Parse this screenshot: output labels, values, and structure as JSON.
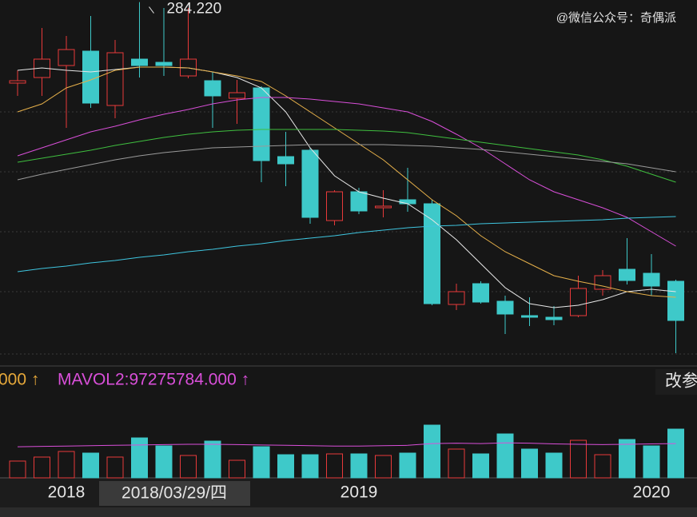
{
  "chart_data": {
    "type": "candlestick",
    "watermark": "@微信公众号：奇偶派",
    "annotations": [
      {
        "text": "284.220",
        "index": 5
      }
    ],
    "crosshair_label": "2018/03/29/四",
    "settings_button": "改参",
    "volume_legend": [
      "000 ↑",
      "MAVOL2:97275784.000 ↑"
    ],
    "categories": [
      null,
      null,
      "2018",
      null,
      null,
      null,
      null,
      null,
      null,
      null,
      null,
      null,
      null,
      null,
      "2019",
      null,
      null,
      null,
      null,
      null,
      null,
      null,
      null,
      null,
      null,
      null,
      "2020",
      null
    ],
    "open": [
      253.8,
      255.9,
      260.4,
      265.8,
      245.4,
      262.8,
      261.6,
      256.5,
      254.7,
      248.1,
      252,
      226.2,
      228.6,
      202.2,
      213,
      207,
      210,
      208.5,
      170.7,
      178.5,
      171.9,
      166.5,
      165.9,
      166.5,
      176.4,
      183.9,
      182.4,
      179.4
    ],
    "high": [
      258.6,
      274.5,
      271.5,
      279,
      270,
      284.22,
      282,
      282,
      258,
      255,
      252.6,
      235.5,
      229.5,
      213.6,
      214.5,
      213.6,
      222,
      210,
      178.5,
      179.4,
      174,
      173.4,
      170.1,
      181.5,
      183.6,
      195.6,
      189.6,
      180
    ],
    "low": [
      249,
      249,
      237,
      244.5,
      240.6,
      255.9,
      256.5,
      255.6,
      237,
      238.5,
      216.6,
      215.1,
      201,
      200.4,
      204.6,
      203.4,
      205.5,
      170.4,
      168.6,
      171,
      159.6,
      162.6,
      162.9,
      165.9,
      174,
      178.2,
      174,
      152.4
    ],
    "close": [
      254.7,
      262.8,
      266.4,
      246.3,
      265.2,
      260.4,
      260.4,
      262.8,
      249,
      250.2,
      224.7,
      223.5,
      203.4,
      213,
      205.8,
      207.6,
      208.5,
      171,
      175.5,
      171.6,
      167.1,
      165.9,
      165,
      176.7,
      181.5,
      179.7,
      177.6,
      164.7
    ],
    "up_color": "#e8393a",
    "down_color": "#3ec9c9",
    "ylim": [
      151.5,
      285
    ],
    "ma_lines": [
      {
        "color": "#e8e8e8",
        "values": [
          258.6,
          259.5,
          258.6,
          258,
          258.9,
          259.8,
          259.8,
          259.5,
          258,
          255.9,
          252,
          243,
          229.5,
          219,
          213,
          210.6,
          208.5,
          202.5,
          195,
          186,
          177,
          171,
          169.5,
          170.4,
          172.5,
          175.5,
          176.4,
          175.5
        ]
      },
      {
        "color": "#e6b04a",
        "values": [
          243,
          246,
          252,
          255,
          258.6,
          259.8,
          259.8,
          259.5,
          258,
          256.5,
          254.4,
          249,
          243,
          237,
          231,
          225,
          217.5,
          210,
          204,
          196.5,
          190.5,
          186,
          181.5,
          179.4,
          177.6,
          175.5,
          174,
          173.4
        ]
      },
      {
        "color": "#d94fd9",
        "values": [
          226.5,
          229.5,
          232.5,
          235.5,
          237.6,
          240,
          242.1,
          243.9,
          246,
          247.5,
          248.4,
          248.4,
          247.8,
          246.9,
          246,
          244.5,
          243,
          239.4,
          234.6,
          229.5,
          223.5,
          217.5,
          213,
          210,
          207,
          203.4,
          198,
          192.6
        ]
      },
      {
        "color": "#3fbf3f",
        "values": [
          224.1,
          225.6,
          227.1,
          228.6,
          230.4,
          231.9,
          233.4,
          234.6,
          235.5,
          236.1,
          236.4,
          236.4,
          236.4,
          236.4,
          236.1,
          235.8,
          235.2,
          234,
          232.8,
          231.6,
          230.4,
          229.2,
          228,
          226.8,
          225,
          222.6,
          219.6,
          216.6
        ]
      },
      {
        "color": "#9a9a9a",
        "values": [
          217.5,
          219.6,
          221.4,
          223.2,
          225,
          226.5,
          227.7,
          228.6,
          229.5,
          229.8,
          230.1,
          230.4,
          230.7,
          230.7,
          230.7,
          230.7,
          230.4,
          230.1,
          229.5,
          228.9,
          228,
          227.1,
          226.2,
          225.3,
          224.4,
          223.5,
          222,
          220.5
        ]
      },
      {
        "color": "#3fc6e0",
        "values": [
          183,
          184.2,
          185.1,
          186.3,
          187.2,
          188.4,
          189.3,
          190.5,
          191.4,
          192.6,
          193.5,
          194.7,
          195.6,
          196.5,
          197.7,
          198.6,
          199.5,
          200.1,
          200.4,
          201,
          201.3,
          201.6,
          201.9,
          202.2,
          202.5,
          203.1,
          203.4,
          203.7
        ]
      }
    ],
    "volume": [
      47500000,
      58800000,
      74600000,
      70100000,
      58800000,
      113000000,
      90400000,
      63300000,
      104000000,
      49700000,
      88100000,
      65500000,
      65500000,
      67800000,
      67800000,
      63300000,
      70100000,
      149200000,
      81400000,
      67800000,
      124300000,
      81400000,
      70100000,
      106200000,
      65500000,
      108500000,
      90400000,
      137900000
    ],
    "vlim": [
      0,
      312000000
    ],
    "volume_ma": {
      "color": "#d94fd9",
      "values": [
        88000000,
        89000000,
        90000000,
        91000000,
        92000000,
        93000000,
        94000000,
        95000000,
        95000000,
        94000000,
        93000000,
        92000000,
        91000000,
        90000000,
        90000000,
        91000000,
        92000000,
        97000000,
        98000000,
        97000000,
        99000000,
        98000000,
        96000000,
        95000000,
        94000000,
        95000000,
        96000000,
        97000000
      ]
    }
  }
}
